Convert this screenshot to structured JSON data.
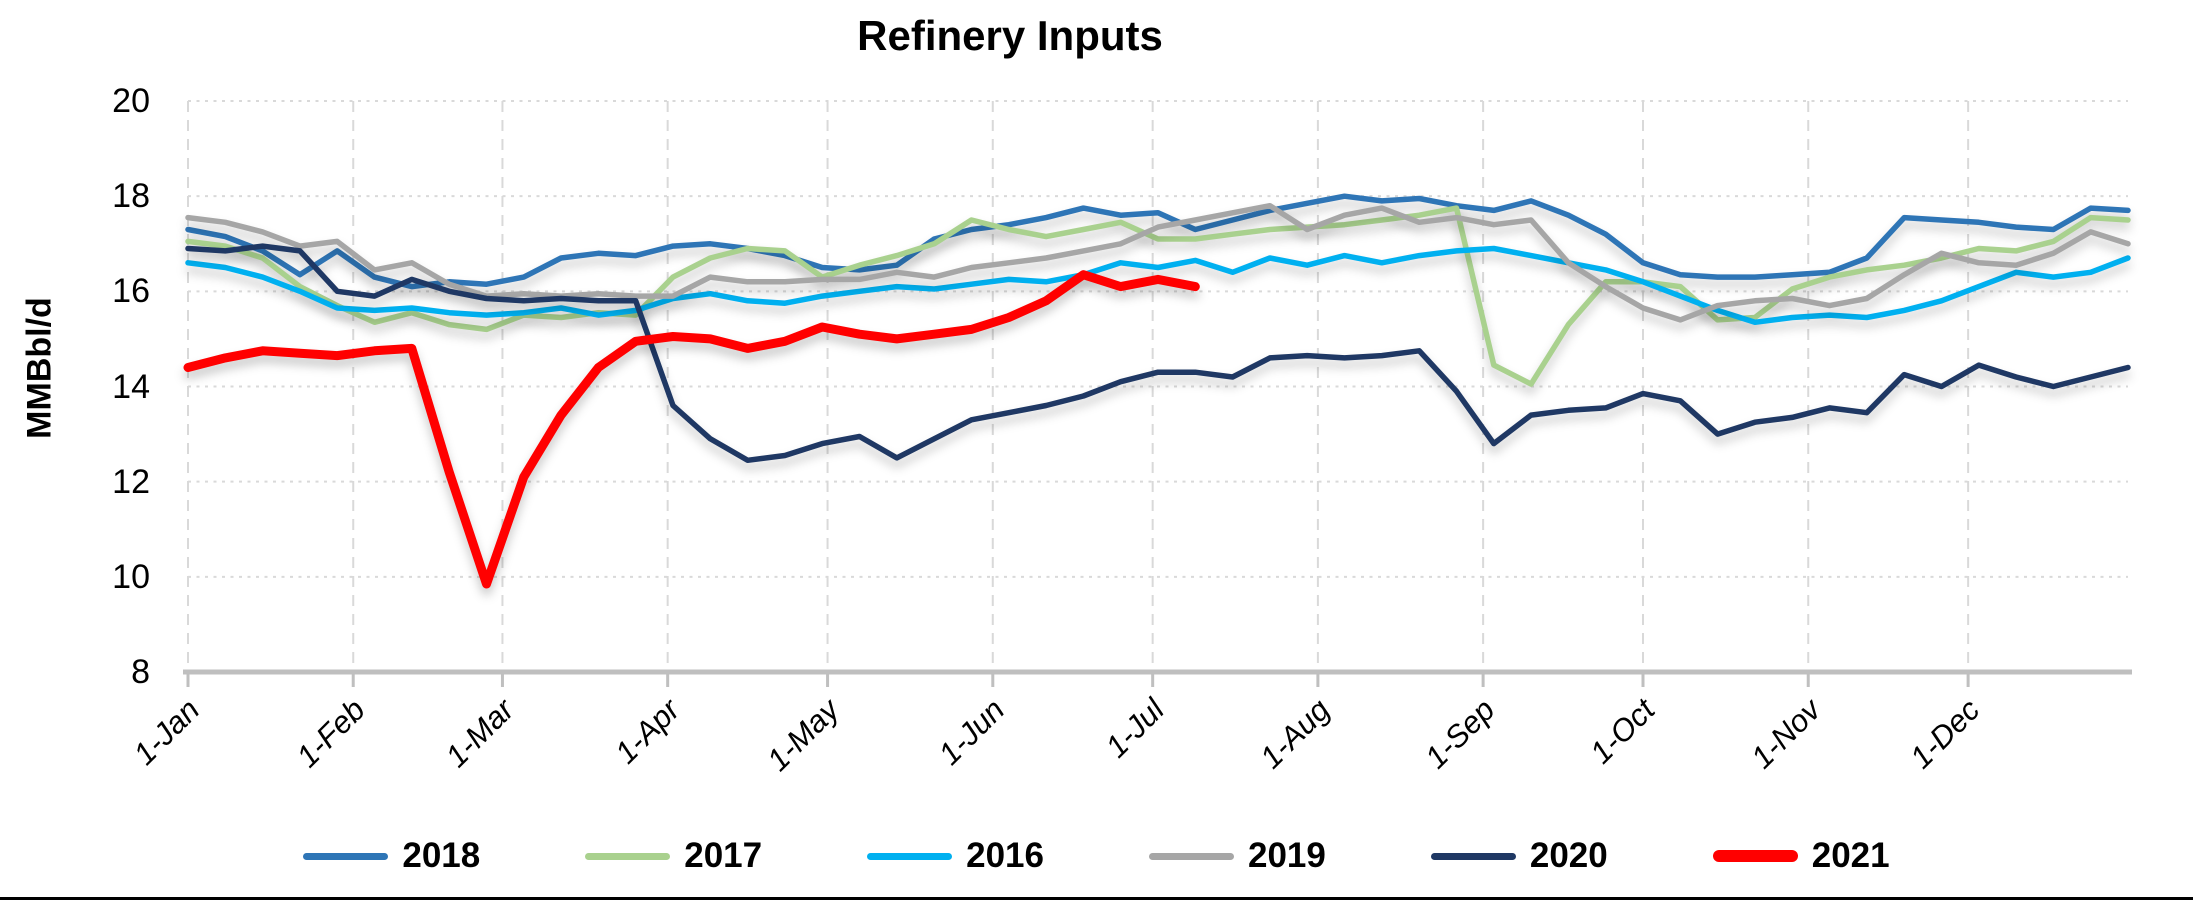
{
  "title": "Refinery Inputs",
  "y_axis": {
    "label": "MMBbl/d",
    "ticks": [
      20,
      18,
      16,
      14,
      12,
      10,
      8
    ]
  },
  "x_axis": {
    "tick_labels": [
      "1-Jan",
      "1-Feb",
      "1-Mar",
      "1-Apr",
      "1-May",
      "1-Jun",
      "1-Jul",
      "1-Aug",
      "1-Sep",
      "1-Oct",
      "1-Nov",
      "1-Dec"
    ]
  },
  "style_colors": {
    "gridline": "#D9D9D9",
    "axis_line": "#BFBFBF",
    "text": "#000000",
    "background": "#FFFFFF"
  },
  "chart_data": {
    "type": "line",
    "title": "Refinery Inputs",
    "xlabel": "",
    "ylabel": "MMBbl/d",
    "ylim": [
      8,
      20
    ],
    "grid": true,
    "legend_position": "bottom",
    "x_unit": "weekly data, weeks since 1-Jan (0-52)",
    "x_tick_labels": [
      "1-Jan",
      "1-Feb",
      "1-Mar",
      "1-Apr",
      "1-May",
      "1-Jun",
      "1-Jul",
      "1-Aug",
      "1-Sep",
      "1-Oct",
      "1-Nov",
      "1-Dec"
    ],
    "series": [
      {
        "name": "2018",
        "color": "#2E75B6",
        "thick": false,
        "values": [
          17.3,
          17.15,
          16.85,
          16.35,
          16.85,
          16.3,
          16.1,
          16.2,
          16.15,
          16.3,
          16.7,
          16.8,
          16.75,
          16.95,
          17.0,
          16.9,
          16.75,
          16.5,
          16.45,
          16.55,
          17.1,
          17.3,
          17.4,
          17.55,
          17.75,
          17.6,
          17.65,
          17.3,
          17.5,
          17.7,
          17.85,
          18.0,
          17.9,
          17.95,
          17.8,
          17.7,
          17.9,
          17.6,
          17.2,
          16.6,
          16.35,
          16.3,
          16.3,
          16.35,
          16.4,
          16.7,
          17.55,
          17.5,
          17.45,
          17.35,
          17.3,
          17.75,
          17.7
        ]
      },
      {
        "name": "2017",
        "color": "#A9D18E",
        "thick": false,
        "values": [
          17.05,
          16.95,
          16.7,
          16.1,
          15.7,
          15.35,
          15.55,
          15.3,
          15.2,
          15.5,
          15.45,
          15.55,
          15.5,
          16.3,
          16.7,
          16.9,
          16.85,
          16.3,
          16.55,
          16.75,
          17.0,
          17.5,
          17.3,
          17.15,
          17.3,
          17.45,
          17.1,
          17.1,
          17.2,
          17.3,
          17.35,
          17.4,
          17.5,
          17.6,
          17.75,
          14.45,
          14.05,
          15.3,
          16.2,
          16.2,
          16.1,
          15.4,
          15.45,
          16.05,
          16.3,
          16.45,
          16.55,
          16.7,
          16.9,
          16.85,
          17.05,
          17.55,
          17.5
        ]
      },
      {
        "name": "2016",
        "color": "#00B0F0",
        "thick": false,
        "values": [
          16.6,
          16.5,
          16.3,
          16.0,
          15.65,
          15.6,
          15.65,
          15.55,
          15.5,
          15.55,
          15.65,
          15.5,
          15.6,
          15.85,
          15.95,
          15.8,
          15.75,
          15.9,
          16.0,
          16.1,
          16.05,
          16.15,
          16.25,
          16.2,
          16.35,
          16.6,
          16.5,
          16.65,
          16.4,
          16.7,
          16.55,
          16.75,
          16.6,
          16.75,
          16.85,
          16.9,
          16.75,
          16.6,
          16.45,
          16.2,
          15.9,
          15.6,
          15.35,
          15.45,
          15.5,
          15.45,
          15.6,
          15.8,
          16.1,
          16.4,
          16.3,
          16.4,
          16.7
        ]
      },
      {
        "name": "2019",
        "color": "#A6A6A6",
        "thick": false,
        "values": [
          17.55,
          17.45,
          17.25,
          16.95,
          17.05,
          16.45,
          16.6,
          16.15,
          15.9,
          15.95,
          15.9,
          15.95,
          15.9,
          15.9,
          16.3,
          16.2,
          16.2,
          16.25,
          16.25,
          16.4,
          16.3,
          16.5,
          16.6,
          16.7,
          16.85,
          17.0,
          17.35,
          17.5,
          17.65,
          17.8,
          17.3,
          17.6,
          17.75,
          17.45,
          17.55,
          17.4,
          17.5,
          16.6,
          16.1,
          15.65,
          15.4,
          15.7,
          15.8,
          15.85,
          15.7,
          15.85,
          16.35,
          16.8,
          16.6,
          16.55,
          16.8,
          17.25,
          17.0
        ]
      },
      {
        "name": "2020",
        "color": "#1F3864",
        "thick": false,
        "values": [
          16.9,
          16.85,
          16.95,
          16.85,
          16.0,
          15.9,
          16.25,
          16.0,
          15.85,
          15.8,
          15.85,
          15.8,
          15.8,
          13.6,
          12.9,
          12.45,
          12.55,
          12.8,
          12.95,
          12.5,
          12.9,
          13.3,
          13.45,
          13.6,
          13.8,
          14.1,
          14.3,
          14.3,
          14.2,
          14.6,
          14.65,
          14.6,
          14.65,
          14.75,
          13.9,
          12.8,
          13.4,
          13.5,
          13.55,
          13.85,
          13.7,
          13.0,
          13.25,
          13.35,
          13.55,
          13.45,
          14.25,
          14.0,
          14.45,
          14.2,
          14.0,
          14.2,
          14.4
        ]
      },
      {
        "name": "2021",
        "color": "#FF0000",
        "thick": true,
        "values": [
          14.4,
          14.6,
          14.75,
          14.7,
          14.65,
          14.75,
          14.8,
          12.2,
          9.85,
          12.1,
          13.4,
          14.4,
          14.95,
          15.05,
          15.0,
          14.8,
          14.95,
          15.25,
          15.1,
          15.0,
          15.1,
          15.2,
          15.45,
          15.8,
          16.35,
          16.1,
          16.25,
          16.1
        ]
      }
    ]
  }
}
